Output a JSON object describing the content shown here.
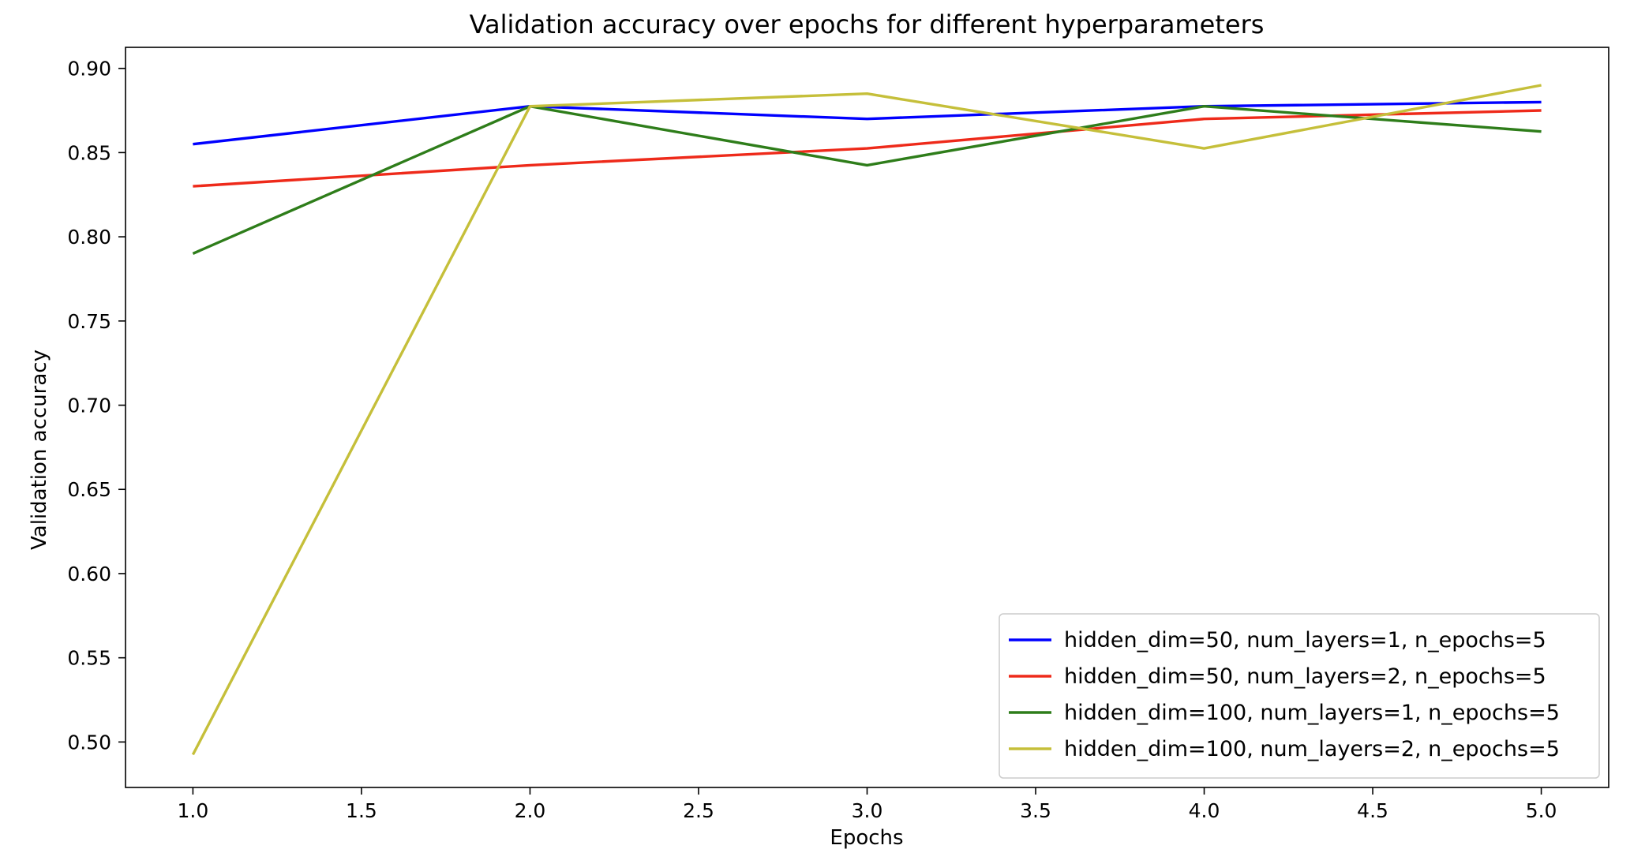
{
  "chart_data": {
    "type": "line",
    "title": "Validation accuracy over epochs for different hyperparameters",
    "xlabel": "Epochs",
    "ylabel": "Validation accuracy",
    "x": [
      1.0,
      2.0,
      3.0,
      4.0,
      5.0
    ],
    "xlim": [
      0.8,
      5.2
    ],
    "ylim": [
      0.473,
      0.9125
    ],
    "xticks": [
      1.0,
      1.5,
      2.0,
      2.5,
      3.0,
      3.5,
      4.0,
      4.5,
      5.0
    ],
    "xtick_labels": [
      "1.0",
      "1.5",
      "2.0",
      "2.5",
      "3.0",
      "3.5",
      "4.0",
      "4.5",
      "5.0"
    ],
    "yticks": [
      0.5,
      0.55,
      0.6,
      0.65,
      0.7,
      0.75,
      0.8,
      0.85,
      0.9
    ],
    "ytick_labels": [
      "0.50",
      "0.55",
      "0.60",
      "0.65",
      "0.70",
      "0.75",
      "0.80",
      "0.85",
      "0.90"
    ],
    "grid": false,
    "legend_position": "lower-right",
    "series": [
      {
        "name": "hidden_dim=50, num_layers=1, n_epochs=5",
        "color": "#0000ff",
        "values": [
          0.855,
          0.8775,
          0.87,
          0.8775,
          0.88
        ]
      },
      {
        "name": "hidden_dim=50, num_layers=2, n_epochs=5",
        "color": "#ee2a1a",
        "values": [
          0.83,
          0.8425,
          0.8525,
          0.87,
          0.875
        ]
      },
      {
        "name": "hidden_dim=100, num_layers=1, n_epochs=5",
        "color": "#2e7d1a",
        "values": [
          0.79,
          0.8775,
          0.8425,
          0.8775,
          0.8625
        ]
      },
      {
        "name": "hidden_dim=100, num_layers=2, n_epochs=5",
        "color": "#c5bf3a",
        "values": [
          0.4925,
          0.8775,
          0.885,
          0.8525,
          0.89
        ]
      }
    ]
  }
}
